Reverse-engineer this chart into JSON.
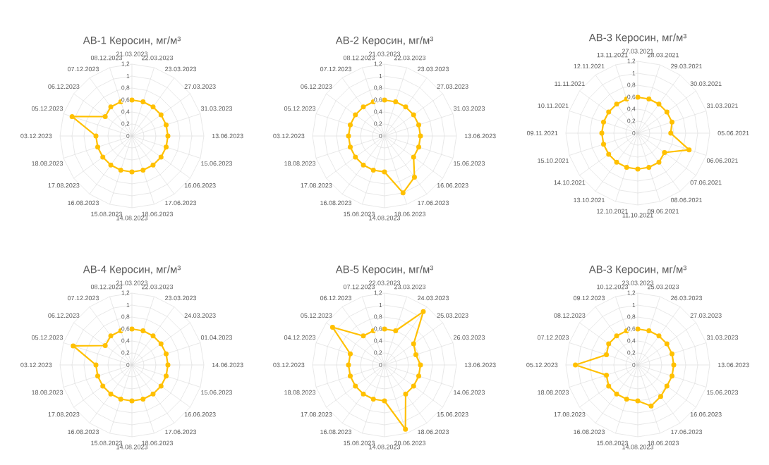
{
  "chart_data": [
    {
      "type": "radar",
      "title": "АВ-1 Керосин, мг/м³",
      "categories": [
        "21.03.2023",
        "22.03.2023",
        "23.03.2023",
        "27.03.2023",
        "31.03.2023",
        "13.06.2023",
        "15.06.2023",
        "16.06.2023",
        "17.06.2023",
        "18.06.2023",
        "14.08.2023",
        "15.08.2023",
        "16.08.2023",
        "17.08.2023",
        "18.08.2023",
        "03.12.2023",
        "05.12.2023",
        "06.12.2023",
        "07.12.2023",
        "08.12.2023"
      ],
      "series": [
        {
          "color": "#ffc000",
          "values": [
            0.6,
            0.6,
            0.6,
            0.6,
            0.6,
            0.6,
            0.6,
            0.6,
            0.6,
            0.6,
            0.6,
            0.6,
            0.6,
            0.6,
            0.6,
            0.6,
            1.05,
            0.55,
            0.6,
            0.6
          ]
        }
      ],
      "ylim": [
        0,
        1.2
      ],
      "yticks": [
        0,
        {
          "value": 0.2,
          "label": "0,2"
        },
        {
          "value": 0.4,
          "label": "0,4"
        },
        {
          "value": 0.6,
          "label": "0,6"
        },
        {
          "value": 0.8,
          "label": "0,8"
        },
        1,
        {
          "value": 1.2,
          "label": "1,2"
        }
      ],
      "grid": true,
      "marker": "circle"
    },
    {
      "type": "radar",
      "title": "АВ-2 Керосин, мг/м³",
      "categories": [
        "21.03.2023",
        "22.03.2023",
        "23.03.2023",
        "27.03.2023",
        "31.03.2023",
        "13.06.2023",
        "15.06.2023",
        "16.06.2023",
        "17.06.2023",
        "18.06.2023",
        "14.08.2023",
        "15.08.2023",
        "16.08.2023",
        "17.08.2023",
        "18.08.2023",
        "03.12.2023",
        "05.12.2023",
        "06.12.2023",
        "07.12.2023",
        "08.12.2023"
      ],
      "series": [
        {
          "color": "#ffc000",
          "values": [
            0.6,
            0.6,
            0.6,
            0.6,
            0.6,
            0.6,
            0.6,
            0.6,
            0.85,
            1.0,
            0.6,
            0.6,
            0.6,
            0.6,
            0.6,
            0.6,
            0.6,
            0.6,
            0.6,
            0.6
          ]
        }
      ],
      "ylim": [
        0,
        1.2
      ],
      "yticks": [
        0,
        {
          "value": 0.2,
          "label": "0,2"
        },
        {
          "value": 0.4,
          "label": "0,4"
        },
        {
          "value": 0.6,
          "label": "0,6"
        },
        {
          "value": 0.8,
          "label": "0,8"
        },
        1,
        {
          "value": 1.2,
          "label": "1,2"
        }
      ],
      "grid": true,
      "marker": "circle"
    },
    {
      "type": "radar",
      "title": "АВ-3 Керосин, мг/м³",
      "categories": [
        "27.03.2021",
        "28.03.2021",
        "29.03.2021",
        "30.03.2021",
        "31.03.2021",
        "05.06.2021",
        "06.06.2021",
        "07.06.2021",
        "08.06.2021",
        "09.06.2021",
        "11.10.2021",
        "12.10.2021",
        "13.10.2021",
        "14.10.2021",
        "15.10.2021",
        "09.11.2021",
        "10.11.2021",
        "11.11.2021",
        "12.11.2021",
        "13.11.2021"
      ],
      "series": [
        {
          "color": "#ffc000",
          "values": [
            0.6,
            0.6,
            0.6,
            0.6,
            0.6,
            0.55,
            0.9,
            0.55,
            0.6,
            0.6,
            0.6,
            0.6,
            0.6,
            0.6,
            0.6,
            0.6,
            0.6,
            0.6,
            0.6,
            0.6
          ]
        }
      ],
      "ylim": [
        0,
        1.2
      ],
      "yticks": [
        0,
        {
          "value": 0.2,
          "label": "0,2"
        },
        {
          "value": 0.4,
          "label": "0,4"
        },
        {
          "value": 0.6,
          "label": "0,6"
        },
        {
          "value": 0.8,
          "label": "0,8"
        },
        1,
        {
          "value": 1.2,
          "label": "1,2"
        }
      ],
      "grid": true,
      "marker": "circle"
    },
    {
      "type": "radar",
      "title": "АВ-4 Керосин, мг/м³",
      "categories": [
        "21.03.2023",
        "22.03.2023",
        "23.03.2023",
        "24.03.2023",
        "01.04.2023",
        "14.06.2023",
        "15.06.2023",
        "16.06.2023",
        "17.06.2023",
        "18.06.2023",
        "14.08.2023",
        "15.08.2023",
        "16.08.2023",
        "17.08.2023",
        "18.08.2023",
        "03.12.2023",
        "05.12.2023",
        "06.12.2023",
        "07.12.2023",
        "08.12.2023"
      ],
      "series": [
        {
          "color": "#ffc000",
          "values": [
            0.6,
            0.6,
            0.6,
            0.6,
            0.6,
            0.6,
            0.6,
            0.6,
            0.6,
            0.6,
            0.6,
            0.6,
            0.6,
            0.6,
            0.6,
            0.6,
            1.03,
            0.55,
            0.6,
            0.6
          ]
        }
      ],
      "ylim": [
        0,
        1.2
      ],
      "yticks": [
        0,
        {
          "value": 0.2,
          "label": "0,2"
        },
        {
          "value": 0.4,
          "label": "0,4"
        },
        {
          "value": 0.6,
          "label": "0,6"
        },
        {
          "value": 0.8,
          "label": "0,8"
        },
        1,
        {
          "value": 1.2,
          "label": "1,2"
        }
      ],
      "grid": true,
      "marker": "circle"
    },
    {
      "type": "radar",
      "title": "АВ-5 Керосин, мг/м³",
      "categories": [
        "22.03.2023",
        "23.03.2023",
        "24.03.2023",
        "25.03.2023",
        "26.03.2023",
        "13.06.2023",
        "14.06.2023",
        "15.06.2023",
        "18.06.2023",
        "20.06.2023",
        "14.08.2023",
        "15.08.2023",
        "16.08.2023",
        "17.08.2023",
        "18.08.2023",
        "03.12.2023",
        "04.12.2023",
        "05.12.2023",
        "06.12.2023",
        "07.12.2023"
      ],
      "series": [
        {
          "color": "#ffc000",
          "values": [
            0.6,
            0.6,
            1.1,
            0.6,
            0.55,
            0.6,
            0.6,
            0.6,
            0.6,
            1.13,
            0.6,
            0.6,
            0.6,
            0.6,
            0.6,
            0.6,
            0.6,
            1.07,
            0.6,
            0.6
          ]
        }
      ],
      "ylim": [
        0,
        1.2
      ],
      "yticks": [
        0,
        {
          "value": 0.2,
          "label": "0,2"
        },
        {
          "value": 0.4,
          "label": "0,4"
        },
        {
          "value": 0.6,
          "label": "0,6"
        },
        {
          "value": 0.8,
          "label": "0,8"
        },
        1,
        {
          "value": 1.2,
          "label": "1,2"
        }
      ],
      "grid": true,
      "marker": "circle"
    },
    {
      "type": "radar",
      "title": "АВ-3 Керосин, мг/м³",
      "categories": [
        "23.03.2023",
        "25.03.2023",
        "26.03.2023",
        "27.03.2023",
        "31.03.2023",
        "13.06.2023",
        "15.06.2023",
        "16.06.2023",
        "17.06.2023",
        "18.06.2023",
        "14.08.2023",
        "15.08.2023",
        "16.08.2023",
        "17.08.2023",
        "18.08.2023",
        "05.12.2023",
        "07.12.2023",
        "08.12.2023",
        "09.12.2023",
        "10.12.2023"
      ],
      "series": [
        {
          "color": "#ffc000",
          "values": [
            0.6,
            0.6,
            0.6,
            0.6,
            0.6,
            0.6,
            0.6,
            0.6,
            0.65,
            0.72,
            0.6,
            0.6,
            0.6,
            0.6,
            0.55,
            1.04,
            0.55,
            0.6,
            0.6,
            0.6
          ]
        }
      ],
      "ylim": [
        0,
        1.2
      ],
      "yticks": [
        0,
        {
          "value": 0.2,
          "label": "0,2"
        },
        {
          "value": 0.4,
          "label": "0,4"
        },
        {
          "value": 0.6,
          "label": "0,6"
        },
        {
          "value": 0.8,
          "label": "0,8"
        },
        1,
        {
          "value": 1.2,
          "label": "1,2"
        }
      ],
      "grid": true,
      "marker": "circle"
    }
  ]
}
